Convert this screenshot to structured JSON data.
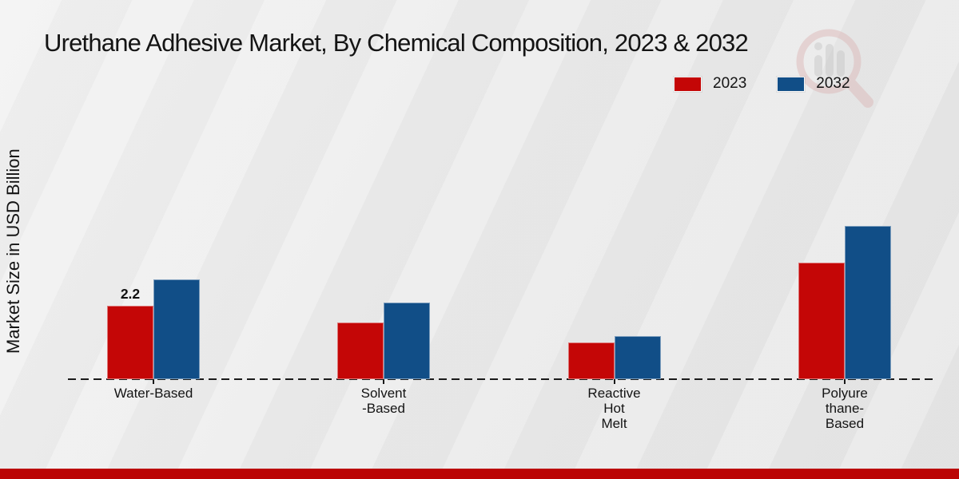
{
  "title": "Urethane Adhesive Market, By Chemical Composition, 2023 & 2032",
  "y_axis_label": "Market Size in USD Billion",
  "legend": {
    "items": [
      {
        "label": "2023",
        "color": "#c40606"
      },
      {
        "label": "2032",
        "color": "#114e87"
      }
    ]
  },
  "chart_data": {
    "type": "bar",
    "title": "Urethane Adhesive Market, By Chemical Composition, 2023 & 2032",
    "xlabel": "",
    "ylabel": "Market Size in USD Billion",
    "categories": [
      "Water-Based",
      "Solvent\n-Based",
      "Reactive\nHot\nMelt",
      "Polyure\nthane-\nBased"
    ],
    "series": [
      {
        "name": "2023",
        "color": "#c40606",
        "values": [
          2.2,
          1.7,
          1.1,
          3.5
        ]
      },
      {
        "name": "2032",
        "color": "#114e87",
        "values": [
          3.0,
          2.3,
          1.3,
          4.6
        ]
      }
    ],
    "annotations": [
      {
        "series": "2023",
        "category_index": 0,
        "text": "2.2"
      }
    ],
    "ylim": [
      0,
      5
    ],
    "grid": false,
    "legend_position": "top-right",
    "baseline_style": "dashed"
  },
  "colors": {
    "series_2023": "#c40606",
    "series_2032": "#114e87",
    "bottom_bar": "#bb0404",
    "background": "#e9e9e9",
    "axis_line": "#1a1a1a"
  },
  "icons": {
    "watermark": "magnifier-bar-chart-logo"
  }
}
